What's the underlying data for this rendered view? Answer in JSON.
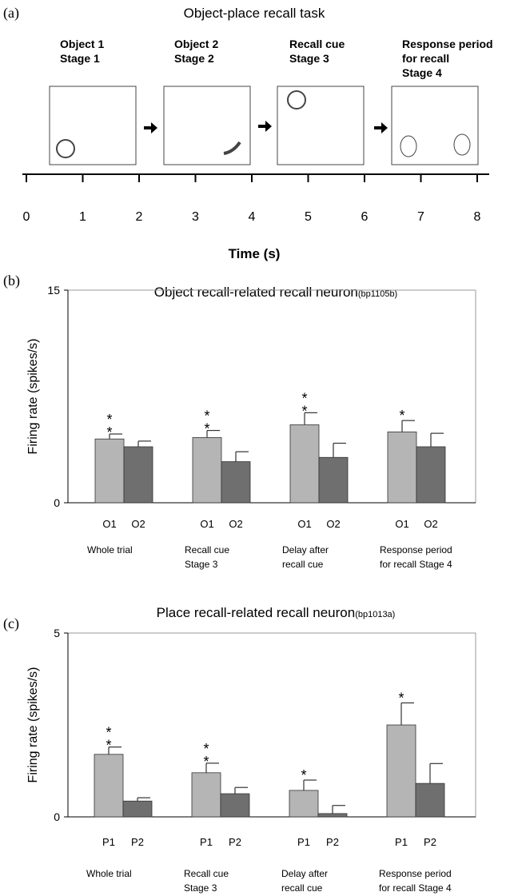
{
  "chart_data": [
    {
      "type": "timeline",
      "panel_label": "(a)",
      "title": "Object-place recall task",
      "stages": [
        [
          "Object 1",
          "Stage 1"
        ],
        [
          "Object 2",
          "Stage 2"
        ],
        [
          "Recall cue",
          "Stage 3"
        ],
        [
          "Response period",
          "for recall",
          "Stage 4"
        ]
      ],
      "xlim": [
        0,
        8
      ],
      "xticks": [
        0,
        1,
        2,
        3,
        4,
        5,
        6,
        7,
        8
      ],
      "xlabel": "Time (s)"
    },
    {
      "type": "bar",
      "panel_label": "(b)",
      "title": "Object recall-related recall neuron",
      "title_note": "(bp1105b)",
      "ylabel": "Firing rate (spikes/s)",
      "ylim": [
        0,
        15
      ],
      "yticks": [
        0,
        15
      ],
      "categories": [
        [
          "Whole trial"
        ],
        [
          "Recall cue",
          "Stage 3"
        ],
        [
          "Delay after",
          "recall cue"
        ],
        [
          "Response period",
          "for recall Stage 4"
        ]
      ],
      "series": [
        {
          "name": "O1",
          "color": "#b5b5b5",
          "values": [
            4.5,
            4.6,
            5.5,
            5.0
          ],
          "errors": [
            0.35,
            0.5,
            0.85,
            0.8
          ],
          "significance": [
            "**",
            "**",
            "**",
            "*"
          ]
        },
        {
          "name": "O2",
          "color": "#6f6f6f",
          "values": [
            3.95,
            2.9,
            3.2,
            3.95
          ],
          "errors": [
            0.4,
            0.7,
            1.0,
            0.95
          ]
        }
      ]
    },
    {
      "type": "bar",
      "panel_label": "(c)",
      "title": "Place recall-related recall neuron",
      "title_note": "(bp1013a)",
      "ylabel": "Firing rate (spikes/s)",
      "ylim": [
        0,
        5
      ],
      "yticks": [
        0,
        5
      ],
      "categories": [
        [
          "Whole trial"
        ],
        [
          "Recall cue",
          "Stage 3"
        ],
        [
          "Delay after",
          "recall cue"
        ],
        [
          "Response period",
          "for recall Stage 4"
        ]
      ],
      "series": [
        {
          "name": "P1",
          "color": "#b5b5b5",
          "values": [
            1.7,
            1.2,
            0.72,
            2.5
          ],
          "errors": [
            0.2,
            0.26,
            0.28,
            0.6
          ],
          "significance": [
            "**",
            "**",
            "*",
            "*"
          ]
        },
        {
          "name": "P2",
          "color": "#6f6f6f",
          "values": [
            0.43,
            0.63,
            0.09,
            0.91
          ],
          "errors": [
            0.09,
            0.17,
            0.22,
            0.54
          ]
        }
      ]
    }
  ]
}
